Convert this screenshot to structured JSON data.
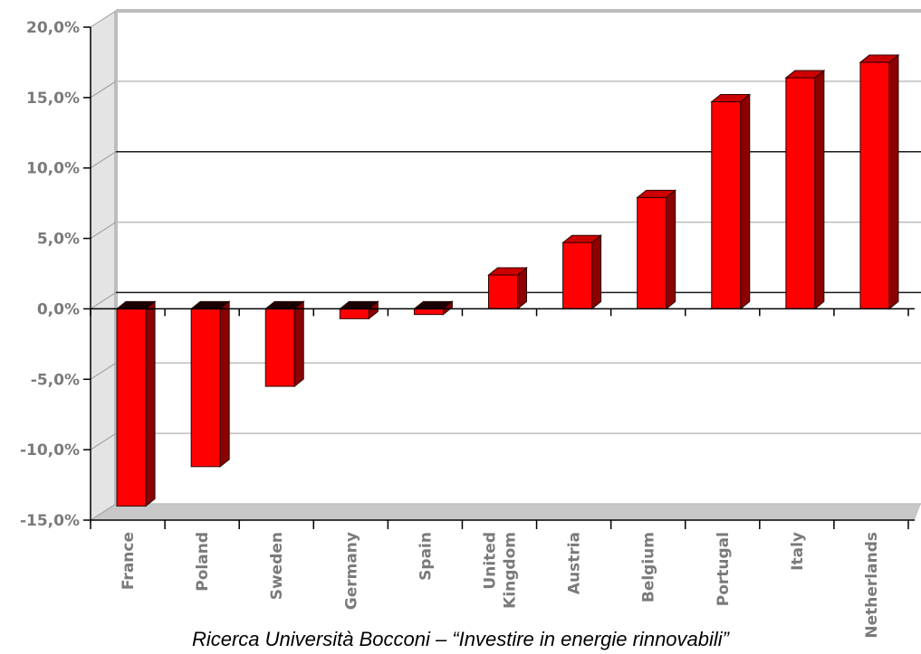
{
  "caption": "Ricerca Università Bocconi – “Investire in energie rinnovabili”",
  "chart_data": {
    "type": "bar",
    "categories": [
      "France",
      "Poland",
      "Sweden",
      "Germany",
      "Spain",
      "United Kingdom",
      "Austria",
      "Belgium",
      "Portugal",
      "Italy",
      "Netherlands"
    ],
    "values": [
      -14.0,
      -11.2,
      -5.5,
      -0.7,
      -0.4,
      2.4,
      4.7,
      7.9,
      14.7,
      16.4,
      17.5
    ],
    "ylim": [
      -15,
      20
    ],
    "yticks": [
      20,
      15,
      10,
      5,
      0,
      -5,
      -10,
      -15
    ],
    "ytick_labels": [
      "20,0%",
      "15,0%",
      "10,0%",
      "5,0%",
      "0,0%",
      "-5,0%",
      "-10,0%",
      "-15,0%"
    ],
    "grid": true,
    "bar_color": "#ff0000",
    "title": "",
    "xlabel": "",
    "ylabel": ""
  }
}
